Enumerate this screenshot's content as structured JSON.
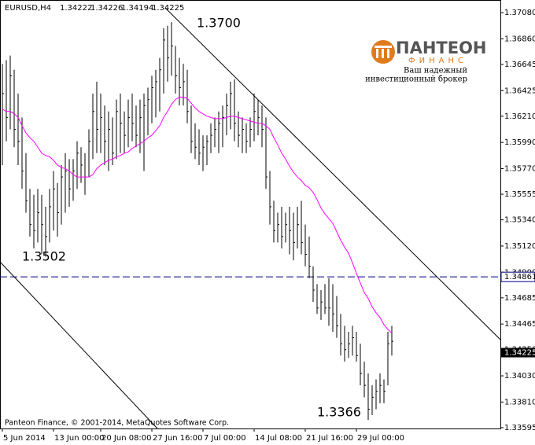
{
  "chart_data": {
    "type": "ohlc",
    "symbol": "EURUSD,H4",
    "ohlc": [
      1.34222,
      1.34226,
      1.34194,
      1.34225
    ],
    "copyright": "Panteon Finance, © 2001-2014, MetaQuotes Software Corp.",
    "logo": {
      "name": "ПАНТЕОН",
      "sub": "ФИНАНС",
      "tagline": [
        "Ваш надежный",
        "инвестиционный брокер"
      ]
    },
    "annotations": [
      "1.3700",
      "1.3502",
      "1.3366"
    ],
    "hline": 1.34861,
    "price_marker": 1.34225,
    "ylim": [
      1.33588,
      1.37186
    ],
    "yticks": [
      {
        "value": 1.3708,
        "label": "1.37080"
      },
      {
        "value": 1.3686,
        "label": "1.36860"
      },
      1.36645,
      1.36425,
      {
        "value": 1.3621,
        "label": "1.36210"
      },
      {
        "value": 1.3599,
        "label": "1.35990"
      },
      {
        "value": 1.3577,
        "label": "1.35770"
      },
      1.35555,
      {
        "value": 1.3534,
        "label": "1.35340"
      },
      {
        "value": 1.3512,
        "label": "1.35120"
      },
      {
        "value": 1.349,
        "label": "1.34900"
      },
      1.34685,
      1.34465,
      {
        "value": 1.3425,
        "label": "1.34250"
      },
      {
        "value": 1.3403,
        "label": "1.34030"
      },
      {
        "value": 1.3381,
        "label": "1.33810"
      },
      1.33595
    ],
    "categories": [
      "5 Jun 2014",
      null,
      null,
      null,
      null,
      null,
      null,
      null,
      null,
      null,
      null,
      null,
      null,
      "13 Jun 00:00",
      null,
      null,
      null,
      null,
      null,
      null,
      null,
      null,
      null,
      null,
      null,
      "20 Jun 08:00",
      null,
      null,
      null,
      null,
      null,
      null,
      null,
      null,
      null,
      null,
      null,
      null,
      "27 Jun 16:00",
      null,
      null,
      null,
      null,
      null,
      null,
      null,
      null,
      null,
      null,
      null,
      null,
      "7 Jul 00:00",
      null,
      null,
      null,
      null,
      null,
      null,
      null,
      null,
      null,
      null,
      null,
      null,
      "14 Jul 08:00",
      null,
      null,
      null,
      null,
      null,
      null,
      null,
      null,
      null,
      null,
      null,
      null,
      "21 Jul 16:00",
      null,
      null,
      null,
      null,
      null,
      null,
      null,
      null,
      null,
      null,
      null,
      null,
      "29 Jul 00:00",
      null,
      null,
      null,
      null,
      null,
      null,
      null,
      null,
      null
    ],
    "bars": {
      "color": "#000000",
      "high": [
        1.3665,
        1.3668,
        1.3672,
        1.366,
        1.364,
        1.362,
        1.359,
        1.356,
        1.3555,
        1.356,
        1.3555,
        1.3545,
        1.356,
        1.3575,
        1.3565,
        1.358,
        1.359,
        1.3585,
        1.3585,
        1.36,
        1.3595,
        1.359,
        1.361,
        1.364,
        1.365,
        1.364,
        1.363,
        1.3625,
        1.362,
        1.3635,
        1.364,
        1.3625,
        1.3635,
        1.364,
        1.363,
        1.3635,
        1.364,
        1.3645,
        1.3655,
        1.366,
        1.367,
        1.3695,
        1.3697,
        1.37,
        1.368,
        1.367,
        1.3665,
        1.366,
        1.363,
        1.3615,
        1.361,
        1.3605,
        1.3605,
        1.3615,
        1.362,
        1.3625,
        1.363,
        1.364,
        1.365,
        1.3652,
        1.3625,
        1.362,
        1.3615,
        1.362,
        1.364,
        1.3635,
        1.363,
        1.362,
        1.3575,
        1.355,
        1.354,
        1.3545,
        1.354,
        1.3545,
        1.354,
        1.3545,
        1.355,
        1.353,
        1.352,
        1.3495,
        1.348,
        1.3475,
        1.348,
        1.3485,
        1.348,
        1.347,
        1.3455,
        1.3445,
        1.344,
        1.3445,
        1.344,
        1.343,
        1.3415,
        1.3405,
        1.3395,
        1.34,
        1.3405,
        1.34,
        1.344,
        1.3445
      ],
      "low": [
        1.358,
        1.36,
        1.361,
        1.3595,
        1.358,
        1.356,
        1.354,
        1.352,
        1.351,
        1.3515,
        1.3505,
        1.3503,
        1.3515,
        1.3525,
        1.352,
        1.353,
        1.354,
        1.3545,
        1.355,
        1.356,
        1.3565,
        1.3555,
        1.357,
        1.3585,
        1.359,
        1.359,
        1.358,
        1.3575,
        1.358,
        1.3585,
        1.359,
        1.359,
        1.3595,
        1.36,
        1.3595,
        1.359,
        1.3575,
        1.3605,
        1.3615,
        1.362,
        1.3625,
        1.364,
        1.365,
        1.3655,
        1.364,
        1.363,
        1.363,
        1.3615,
        1.359,
        1.3585,
        1.358,
        1.3575,
        1.358,
        1.359,
        1.3595,
        1.359,
        1.3595,
        1.3605,
        1.361,
        1.36,
        1.3595,
        1.359,
        1.359,
        1.3595,
        1.36,
        1.3605,
        1.3595,
        1.356,
        1.353,
        1.3515,
        1.3515,
        1.351,
        1.3515,
        1.3505,
        1.35,
        1.351,
        1.3505,
        1.3495,
        1.3485,
        1.3465,
        1.3455,
        1.345,
        1.3455,
        1.3445,
        1.344,
        1.3435,
        1.342,
        1.3415,
        1.3418,
        1.342,
        1.3415,
        1.3395,
        1.3385,
        1.3366,
        1.337,
        1.3375,
        1.338,
        1.338,
        1.3395,
        1.342
      ],
      "close": [
        1.364,
        1.362,
        1.3655,
        1.361,
        1.36,
        1.3575,
        1.355,
        1.353,
        1.3525,
        1.354,
        1.353,
        1.352,
        1.3545,
        1.356,
        1.354,
        1.357,
        1.3575,
        1.356,
        1.3575,
        1.359,
        1.358,
        1.357,
        1.36,
        1.3625,
        1.361,
        1.362,
        1.36,
        1.361,
        1.359,
        1.3625,
        1.3615,
        1.3605,
        1.362,
        1.3615,
        1.3605,
        1.362,
        1.363,
        1.3635,
        1.3645,
        1.365,
        1.366,
        1.3685,
        1.367,
        1.368,
        1.3655,
        1.3645,
        1.365,
        1.3625,
        1.36,
        1.3595,
        1.359,
        1.3595,
        1.36,
        1.3605,
        1.361,
        1.3615,
        1.362,
        1.363,
        1.364,
        1.3615,
        1.3605,
        1.361,
        1.36,
        1.361,
        1.3625,
        1.362,
        1.361,
        1.357,
        1.3545,
        1.3525,
        1.353,
        1.352,
        1.353,
        1.3525,
        1.3515,
        1.353,
        1.3515,
        1.3505,
        1.3495,
        1.3475,
        1.346,
        1.3465,
        1.346,
        1.346,
        1.3455,
        1.3445,
        1.343,
        1.3425,
        1.343,
        1.3435,
        1.342,
        1.3405,
        1.3395,
        1.3375,
        1.3385,
        1.339,
        1.3395,
        1.339,
        1.343,
        1.3432
      ]
    },
    "ma": {
      "color": "#ff00ff",
      "values": [
        1.3627,
        1.3625,
        1.3625,
        1.3623,
        1.362,
        1.3613,
        1.3607,
        1.3603,
        1.36,
        1.3595,
        1.359,
        1.3588,
        1.3587,
        1.3584,
        1.358,
        1.3578,
        1.3577,
        1.3575,
        1.3572,
        1.357,
        1.357,
        1.357,
        1.357,
        1.3572,
        1.3577,
        1.358,
        1.3582,
        1.3584,
        1.3585,
        1.3587,
        1.3588,
        1.359,
        1.3591,
        1.3594,
        1.3596,
        1.3598,
        1.36,
        1.3603,
        1.3605,
        1.3609,
        1.3613,
        1.362,
        1.3625,
        1.3631,
        1.3635,
        1.3637,
        1.3637,
        1.3636,
        1.3632,
        1.3628,
        1.3625,
        1.3623,
        1.3621,
        1.362,
        1.3619,
        1.3619,
        1.3619,
        1.362,
        1.3621,
        1.3621,
        1.362,
        1.3619,
        1.3618,
        1.3617,
        1.3616,
        1.3615,
        1.3615,
        1.3613,
        1.361,
        1.3603,
        1.3597,
        1.359,
        1.3585,
        1.3579,
        1.3574,
        1.357,
        1.3567,
        1.3563,
        1.3561,
        1.3557,
        1.3551,
        1.3544,
        1.3539,
        1.3535,
        1.3531,
        1.3524,
        1.3517,
        1.3511,
        1.3506,
        1.3498,
        1.3489,
        1.3481,
        1.3473,
        1.3468,
        1.3461,
        1.3456,
        1.3452,
        1.3446,
        1.3442,
        1.3439
      ]
    }
  }
}
